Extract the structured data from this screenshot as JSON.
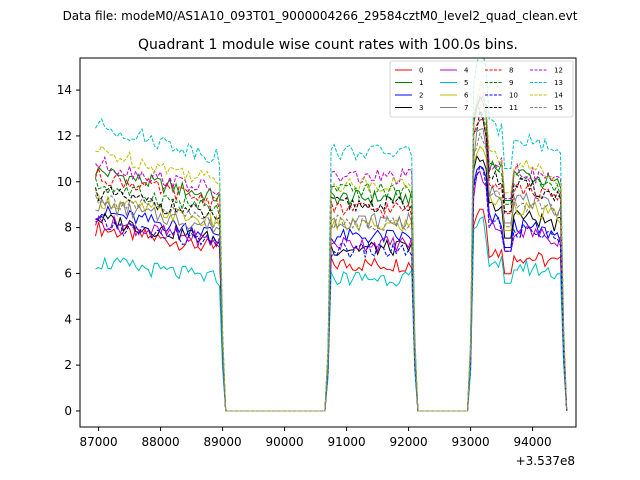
{
  "chart_data": {
    "type": "line",
    "suptitle": "Data file: modeM0/AS1A10_093T01_9000004266_29584cztM0_level2_quad_clean.evt",
    "title": "Quadrant 1 module wise count rates with 100.0s bins.",
    "xlabel": "",
    "ylabel": "",
    "x_offset_label": "+3.537e8",
    "xlim": [
      86700,
      94700
    ],
    "ylim": [
      -0.7,
      15.4
    ],
    "xticks": [
      87000,
      88000,
      89000,
      90000,
      91000,
      92000,
      93000,
      94000
    ],
    "xtick_labels": [
      "87000",
      "88000",
      "89000",
      "90000",
      "91000",
      "92000",
      "93000",
      "94000"
    ],
    "yticks": [
      0,
      2,
      4,
      6,
      8,
      10,
      12,
      14
    ],
    "ytick_labels": [
      "0",
      "2",
      "4",
      "6",
      "8",
      "10",
      "12",
      "14"
    ],
    "legend_position": "top-right",
    "segments": [
      {
        "start": 86950,
        "end": 88950
      },
      {
        "start": 90750,
        "end": 92050
      },
      {
        "start": 93050,
        "end": 94450
      }
    ],
    "gap_value": 0,
    "series": [
      {
        "name": "0",
        "color": "#ff0000",
        "dash": "solid",
        "levels": [
          7.6,
          6.4,
          7.3
        ]
      },
      {
        "name": "1",
        "color": "#008000",
        "dash": "solid",
        "levels": [
          10.0,
          9.3,
          11.2
        ]
      },
      {
        "name": "2",
        "color": "#0000ff",
        "dash": "solid",
        "levels": [
          8.3,
          7.6,
          8.7
        ]
      },
      {
        "name": "3",
        "color": "#000000",
        "dash": "solid",
        "levels": [
          8.0,
          7.1,
          9.2
        ]
      },
      {
        "name": "4",
        "color": "#bf00bf",
        "dash": "solid",
        "levels": [
          7.9,
          7.3,
          8.5
        ]
      },
      {
        "name": "5",
        "color": "#00bfbf",
        "dash": "solid",
        "levels": [
          6.2,
          5.8,
          6.8
        ]
      },
      {
        "name": "6",
        "color": "#bfbf00",
        "dash": "solid",
        "levels": [
          8.8,
          8.1,
          9.6
        ]
      },
      {
        "name": "7",
        "color": "#808080",
        "dash": "solid",
        "levels": [
          8.6,
          8.3,
          10.0
        ]
      },
      {
        "name": "8",
        "color": "#ff0000",
        "dash": "dashed",
        "levels": [
          9.8,
          8.8,
          10.5
        ]
      },
      {
        "name": "9",
        "color": "#008000",
        "dash": "dashed",
        "levels": [
          9.4,
          9.6,
          11.0
        ]
      },
      {
        "name": "10",
        "color": "#0000ff",
        "dash": "dashed",
        "levels": [
          7.8,
          7.0,
          8.5
        ]
      },
      {
        "name": "11",
        "color": "#000000",
        "dash": "dashed",
        "levels": [
          9.1,
          9.0,
          10.6
        ]
      },
      {
        "name": "12",
        "color": "#bf00bf",
        "dash": "dashed",
        "levels": [
          10.3,
          10.2,
          11.3
        ]
      },
      {
        "name": "13",
        "color": "#00bfbf",
        "dash": "dashed",
        "levels": [
          11.9,
          11.3,
          12.9
        ]
      },
      {
        "name": "14",
        "color": "#bfbf00",
        "dash": "dashed",
        "levels": [
          10.8,
          9.9,
          11.6
        ]
      },
      {
        "name": "15",
        "color": "#808080",
        "dash": "dashed",
        "levels": [
          8.9,
          8.2,
          9.8
        ]
      }
    ]
  }
}
